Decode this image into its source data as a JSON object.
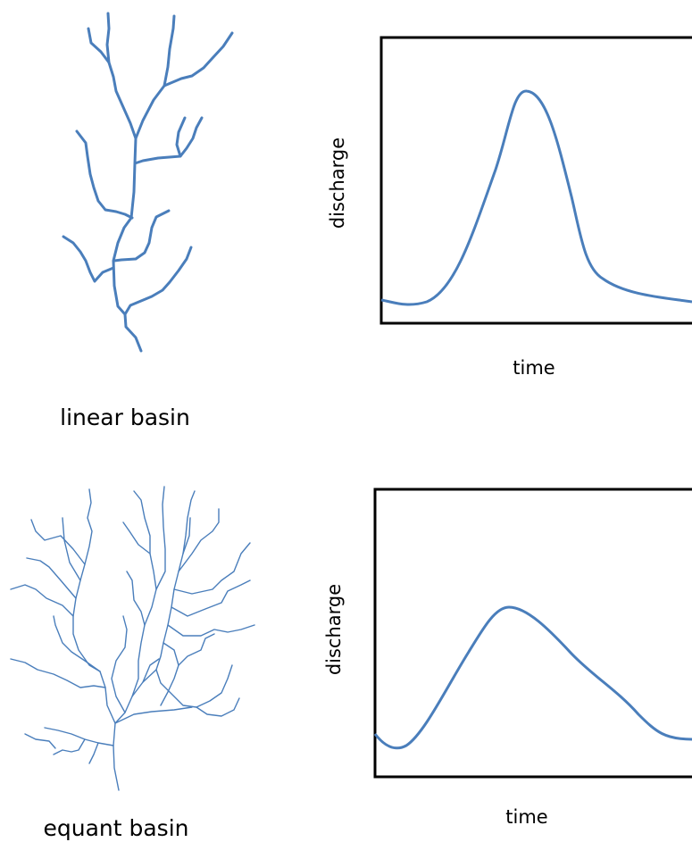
{
  "panels": [
    {
      "basin_label": "linear basin",
      "y_label": "discharge",
      "x_label": "time"
    },
    {
      "basin_label": "equant basin",
      "y_label": "discharge",
      "x_label": "time"
    }
  ]
}
